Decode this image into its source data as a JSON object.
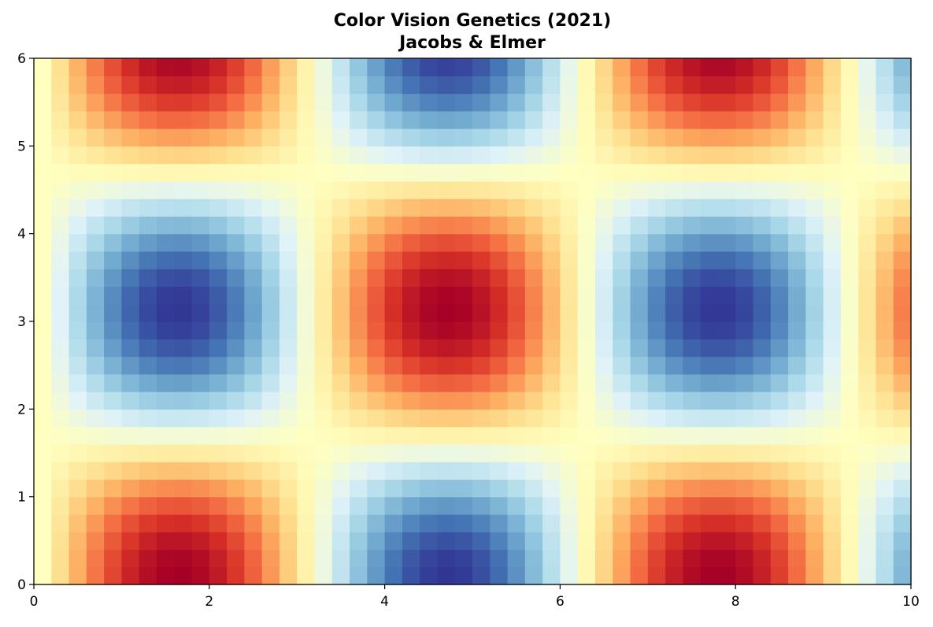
{
  "chart_data": {
    "type": "heatmap",
    "title_lines": [
      "Color Vision Genetics (2021)",
      "Jacobs & Elmer"
    ],
    "xlabel": "",
    "ylabel": "",
    "xlim": [
      0,
      10
    ],
    "ylim": [
      0,
      6
    ],
    "x_ticks": [
      0,
      2,
      4,
      6,
      8,
      10
    ],
    "y_ticks": [
      0,
      1,
      2,
      3,
      4,
      5,
      6
    ],
    "x_tick_labels": [
      "0",
      "2",
      "4",
      "6",
      "8",
      "10"
    ],
    "y_tick_labels": [
      "0",
      "1",
      "2",
      "3",
      "4",
      "5",
      "6"
    ],
    "grid": false,
    "colormap": "RdYlBu_r",
    "colormap_stops": [
      "#313695",
      "#4575b4",
      "#74add1",
      "#abd9e9",
      "#e0f3f8",
      "#ffffbf",
      "#fee090",
      "#fdae61",
      "#f46d43",
      "#d73027",
      "#a50026"
    ],
    "value_range": [
      -1,
      1
    ],
    "grid_x": {
      "start": 0,
      "stop": 10,
      "count": 50
    },
    "grid_y": {
      "start": 0,
      "stop": 6,
      "count": 30
    },
    "function": "sin(x) * cos(y)"
  }
}
